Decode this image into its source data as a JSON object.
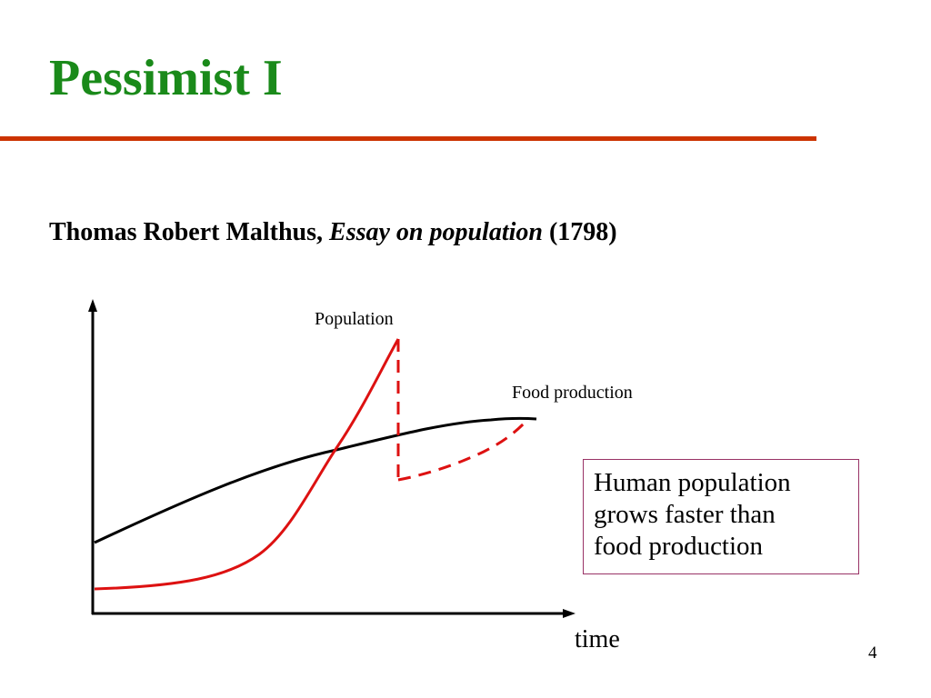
{
  "slide": {
    "title": "Pessimist I",
    "subtitle": {
      "author": "Thomas Robert Malthus,",
      "work": "Essay on population",
      "year": "(1798)"
    },
    "callout": {
      "lines": [
        "Human population",
        "grows faster than",
        "food production"
      ]
    },
    "page_number": "4"
  },
  "diagram": {
    "x_axis_label": "time",
    "curves": {
      "population": {
        "label": "Population",
        "color": "#dd1111"
      },
      "food": {
        "label": "Food production",
        "color": "#000000"
      }
    }
  },
  "colors": {
    "title": "#1a8a1a",
    "rule": "#cc3300",
    "callout_border": "#993366"
  }
}
